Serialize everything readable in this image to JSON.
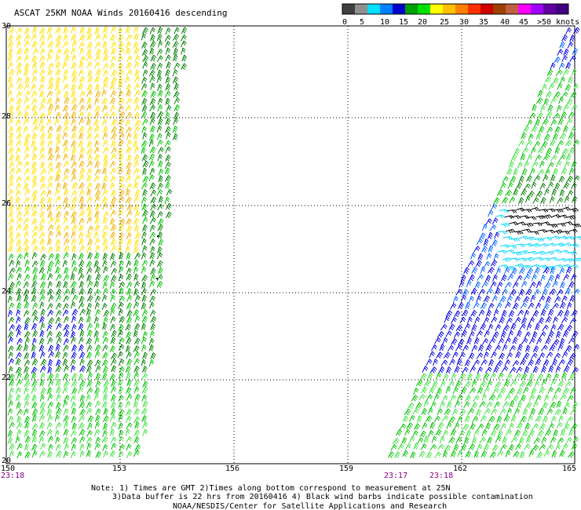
{
  "title": "ASCAT 25KM NOAA Winds 20160416 descending",
  "legend": {
    "labels": [
      "0",
      "5",
      "10",
      "15",
      "20",
      "25",
      "30",
      "35",
      "40",
      "45",
      ">50 knots"
    ],
    "colors": [
      "#404040",
      "#909090",
      "#00e0ff",
      "#0080ff",
      "#0000d0",
      "#00a000",
      "#00e000",
      "#ffff00",
      "#ffc000",
      "#ff8000",
      "#ff3000",
      "#d00000",
      "#a04000",
      "#c06040",
      "#ff00ff",
      "#a000ff",
      "#6000a0",
      "#400080"
    ]
  },
  "axes": {
    "lat_labels": [
      "30",
      "28",
      "26",
      "24",
      "22",
      "20"
    ],
    "lon_labels": [
      "150",
      "153",
      "156",
      "159",
      "162",
      "165"
    ]
  },
  "times": [
    "23:18",
    "23:17",
    "23:18"
  ],
  "notes": {
    "line1": "Note: 1) Times are GMT 2)Times along bottom correspond to measurement at 25N",
    "line2": "3)Data buffer is 22 hrs from 20160416 4) Black wind barbs indicate possible contamination",
    "line3": "NOAA/NESDIS/Center for Satellite Applications and Research"
  },
  "colors": {
    "yellow": "#ffe000",
    "orange": "#f0b000",
    "dark_green": "#008000",
    "green": "#00c000",
    "light_green": "#40e040",
    "blue": "#0000e0",
    "mid_blue": "#0060ff",
    "cyan": "#00d8ff",
    "black": "#000000"
  }
}
